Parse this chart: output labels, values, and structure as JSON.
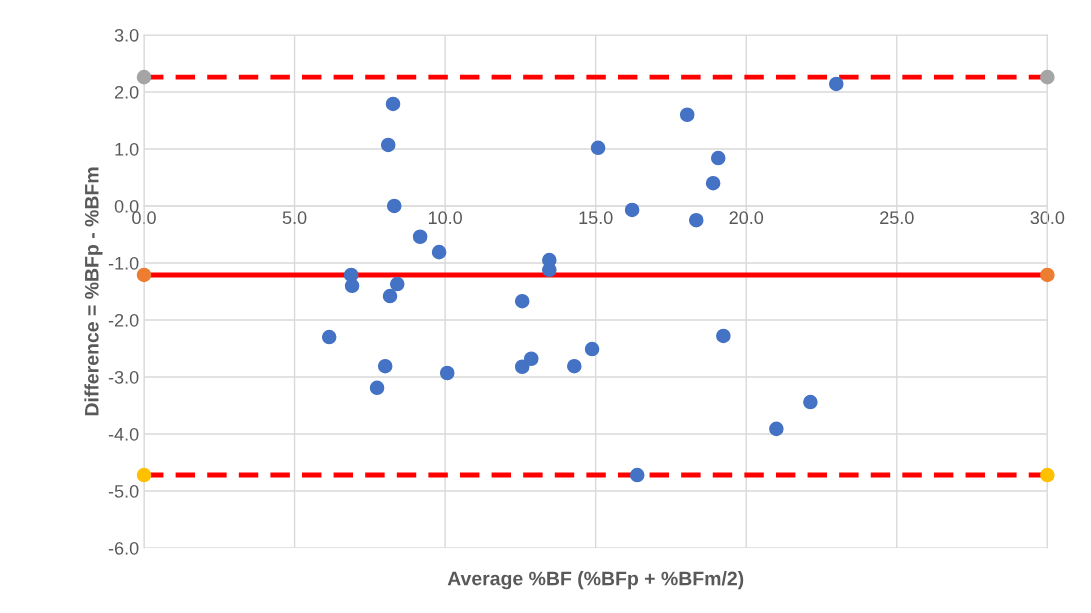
{
  "chart_data": {
    "type": "scatter",
    "xlabel": "Average %BF (%BFp + %BFm/2)",
    "ylabel": "Difference = %BFp - %BFm",
    "xlim": [
      0,
      30
    ],
    "ylim": [
      -6,
      3
    ],
    "xticks": [
      {
        "value": 0,
        "label": "0.0"
      },
      {
        "value": 5,
        "label": "5.0"
      },
      {
        "value": 10,
        "label": "10.0"
      },
      {
        "value": 15,
        "label": "15.0"
      },
      {
        "value": 20,
        "label": "20.0"
      },
      {
        "value": 25,
        "label": "25.0"
      },
      {
        "value": 30,
        "label": "30.0"
      }
    ],
    "yticks": [
      {
        "value": -6,
        "label": "-6.0"
      },
      {
        "value": -5,
        "label": "-5.0"
      },
      {
        "value": -4,
        "label": "-4.0"
      },
      {
        "value": -3,
        "label": "-3.0"
      },
      {
        "value": -2,
        "label": "-2.0"
      },
      {
        "value": -1,
        "label": "-1.0"
      },
      {
        "value": 0,
        "label": "0.0"
      },
      {
        "value": 1,
        "label": "1.0"
      },
      {
        "value": 2,
        "label": "2.0"
      },
      {
        "value": 3,
        "label": "3.0"
      }
    ],
    "grid": true,
    "marker": "circle",
    "ref_lines": [
      {
        "axis": "y",
        "value": 2.26,
        "color": "#ff0000",
        "line_style": "dashed"
      },
      {
        "axis": "y",
        "value": -1.21,
        "color": "#ff0000",
        "line_style": "solid"
      },
      {
        "axis": "y",
        "value": -4.72,
        "color": "#ff0000",
        "line_style": "dashed"
      }
    ],
    "series": [
      {
        "color": "#4472c4",
        "x": [
          6.15,
          6.88,
          6.91,
          7.74,
          8.01,
          8.11,
          8.17,
          8.27,
          8.31,
          8.41,
          9.17,
          9.8,
          10.07,
          12.56,
          12.56,
          12.86,
          13.46,
          13.46,
          14.29,
          14.88,
          15.08,
          16.21,
          16.38,
          18.04,
          18.34,
          18.9,
          19.07,
          19.24,
          21.0,
          22.13,
          22.99
        ],
        "values": [
          -2.3,
          -1.21,
          -1.4,
          -3.19,
          -2.81,
          1.07,
          -1.58,
          1.79,
          0.0,
          -1.37,
          -0.54,
          -0.81,
          -2.93,
          -1.67,
          -2.82,
          -2.68,
          -0.95,
          -1.12,
          -2.81,
          -2.51,
          1.02,
          -0.07,
          -4.72,
          1.6,
          -0.25,
          0.4,
          0.84,
          -2.28,
          -3.91,
          -3.44,
          2.14
        ]
      },
      {
        "color": "#a5a5a5",
        "x": [
          0,
          30
        ],
        "values": [
          2.26,
          2.26
        ]
      },
      {
        "color": "#ed7d31",
        "x": [
          0,
          30
        ],
        "values": [
          -1.21,
          -1.21
        ]
      },
      {
        "color": "#ffc000",
        "x": [
          0,
          30
        ],
        "values": [
          -4.72,
          -4.72
        ]
      }
    ]
  }
}
